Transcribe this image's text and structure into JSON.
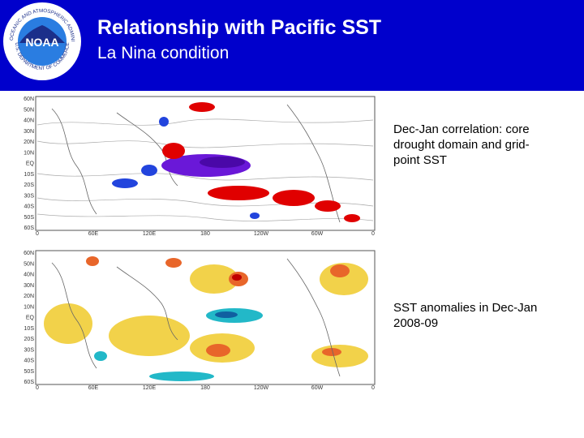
{
  "slide": {
    "title": "Relationship with Pacific SST",
    "subtitle": "La Nina condition"
  },
  "logo": {
    "org_text": "NATIONAL OCEANIC AND ATMOSPHERIC ADMINISTRATION",
    "dept_text": "U.S. DEPARTMENT OF COMMERCE",
    "acronym": "NOAA"
  },
  "maps": [
    {
      "caption": "Dec-Jan correlation: core drought domain and grid-point SST",
      "lat_labels": [
        "60N",
        "50N",
        "40N",
        "30N",
        "20N",
        "10N",
        "EQ",
        "10S",
        "20S",
        "30S",
        "40S",
        "50S",
        "60S"
      ],
      "lon_labels": [
        "0",
        "60E",
        "120E",
        "180",
        "120W",
        "60W",
        "0"
      ]
    },
    {
      "caption": "SST anomalies in Dec-Jan 2008-09",
      "lat_labels": [
        "60N",
        "50N",
        "40N",
        "30N",
        "20N",
        "10N",
        "EQ",
        "10S",
        "20S",
        "30S",
        "40S",
        "50S",
        "60S"
      ],
      "lon_labels": [
        "0",
        "60E",
        "120E",
        "180",
        "120W",
        "60W",
        "0"
      ]
    }
  ],
  "colors": {
    "header_bg": "#0000cc",
    "positive_strong": "#e00000",
    "negative_strong": "#6a18d8",
    "anomaly_warm": "#f2d24a",
    "anomaly_hot": "#e8662a",
    "anomaly_cold": "#22b8c8"
  }
}
